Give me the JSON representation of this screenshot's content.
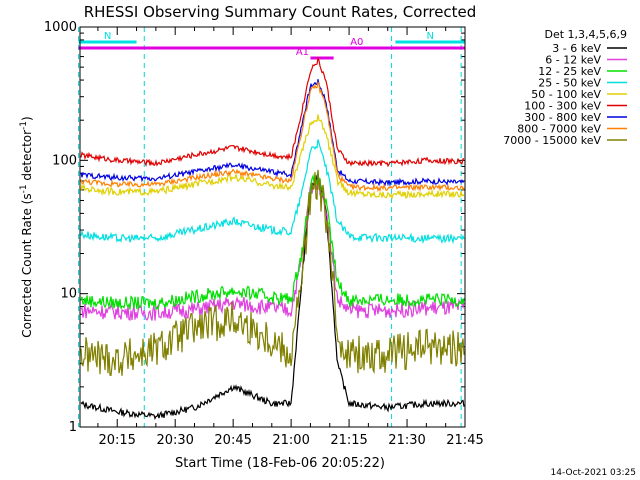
{
  "chart_data": {
    "type": "line",
    "title": "RHESSI Observing Summary Count Rates, Corrected",
    "xlabel": "Start Time (18-Feb-06 20:05:22)",
    "ylabel": "Corrected Count Rate (s⁻¹ detector⁻¹)",
    "ylabel_main": "Corrected Count Rate (s",
    "ylabel_sup1": "-1",
    "ylabel_mid": " detector",
    "ylabel_sup2": "-1",
    "ylabel_end": ")",
    "y_scale": "log",
    "ylim": [
      1,
      1000
    ],
    "xlim": [
      "20:05:22",
      "21:45:00"
    ],
    "x_ticks": [
      "20:15",
      "20:30",
      "20:45",
      "21:00",
      "21:15",
      "21:30",
      "21:45"
    ],
    "y_ticks": [
      "1",
      "10",
      "100",
      "1000"
    ],
    "legend_title": "Det 1,3,4,5,6,9",
    "legend_position": "right",
    "series": [
      {
        "name": "3 - 6 keV",
        "color": "#000000",
        "x": [
          "20:05",
          "20:15",
          "20:25",
          "20:35",
          "20:45",
          "20:55",
          "21:00",
          "21:03",
          "21:05",
          "21:07",
          "21:09",
          "21:12",
          "21:15",
          "21:25",
          "21:35",
          "21:45"
        ],
        "y": [
          1.5,
          1.3,
          1.2,
          1.4,
          2.0,
          1.5,
          1.5,
          15,
          60,
          75,
          45,
          3,
          1.5,
          1.4,
          1.5,
          1.5
        ]
      },
      {
        "name": "6 - 12 keV",
        "color": "#e040e0",
        "x": [
          "20:05",
          "20:15",
          "20:25",
          "20:35",
          "20:45",
          "20:55",
          "21:00",
          "21:03",
          "21:05",
          "21:07",
          "21:09",
          "21:12",
          "21:15",
          "21:25",
          "21:35",
          "21:45"
        ],
        "y": [
          7.5,
          7.3,
          7.2,
          7.6,
          8.5,
          7.8,
          7.5,
          20,
          62,
          70,
          45,
          9,
          7.5,
          7.5,
          7.8,
          7.8
        ]
      },
      {
        "name": "12 - 25 keV",
        "color": "#00e000",
        "x": [
          "20:05",
          "20:15",
          "20:25",
          "20:35",
          "20:45",
          "20:55",
          "21:00",
          "21:03",
          "21:05",
          "21:07",
          "21:09",
          "21:12",
          "21:15",
          "21:25",
          "21:35",
          "21:45"
        ],
        "y": [
          9,
          8.5,
          8.5,
          9.5,
          10.5,
          9.5,
          9,
          22,
          65,
          75,
          48,
          12,
          9,
          9,
          9,
          9
        ]
      },
      {
        "name": "25 - 50 keV",
        "color": "#00e0e0",
        "x": [
          "20:05",
          "20:15",
          "20:25",
          "20:35",
          "20:45",
          "20:55",
          "21:00",
          "21:03",
          "21:05",
          "21:07",
          "21:09",
          "21:12",
          "21:15",
          "21:25",
          "21:35",
          "21:45"
        ],
        "y": [
          28,
          26,
          26,
          30,
          35,
          30,
          29,
          60,
          120,
          135,
          90,
          35,
          27,
          26,
          26,
          26
        ]
      },
      {
        "name": "50 - 100 keV",
        "color": "#e0d000",
        "x": [
          "20:05",
          "20:15",
          "20:25",
          "20:35",
          "20:45",
          "20:55",
          "21:00",
          "21:03",
          "21:05",
          "21:07",
          "21:09",
          "21:12",
          "21:15",
          "21:25",
          "21:35",
          "21:45"
        ],
        "y": [
          62,
          58,
          58,
          66,
          75,
          65,
          62,
          120,
          190,
          210,
          160,
          70,
          57,
          55,
          56,
          56
        ]
      },
      {
        "name": "100 - 300 keV",
        "color": "#e00000",
        "x": [
          "20:05",
          "20:15",
          "20:25",
          "20:35",
          "20:45",
          "20:55",
          "21:00",
          "21:03",
          "21:05",
          "21:07",
          "21:09",
          "21:12",
          "21:15",
          "21:25",
          "21:35",
          "21:45"
        ],
        "y": [
          110,
          100,
          95,
          110,
          125,
          110,
          105,
          250,
          480,
          560,
          400,
          120,
          95,
          95,
          100,
          98
        ]
      },
      {
        "name": "300 - 800 keV",
        "color": "#0000e0",
        "x": [
          "20:05",
          "20:15",
          "20:25",
          "20:35",
          "20:45",
          "20:55",
          "21:00",
          "21:03",
          "21:05",
          "21:07",
          "21:09",
          "21:12",
          "21:15",
          "21:25",
          "21:35",
          "21:45"
        ],
        "y": [
          78,
          74,
          73,
          82,
          92,
          82,
          78,
          200,
          360,
          390,
          280,
          85,
          70,
          68,
          70,
          68
        ]
      },
      {
        "name": "800 - 7000 keV",
        "color": "#ff8000",
        "x": [
          "20:05",
          "20:15",
          "20:25",
          "20:35",
          "20:45",
          "20:55",
          "21:00",
          "21:03",
          "21:05",
          "21:07",
          "21:09",
          "21:12",
          "21:15",
          "21:25",
          "21:35",
          "21:45"
        ],
        "y": [
          70,
          66,
          66,
          74,
          82,
          73,
          70,
          180,
          330,
          370,
          260,
          78,
          63,
          62,
          63,
          62
        ]
      },
      {
        "name": "7000 - 15000 keV",
        "color": "#808000",
        "x": [
          "20:05",
          "20:15",
          "20:25",
          "20:35",
          "20:45",
          "20:55",
          "21:00",
          "21:03",
          "21:05",
          "21:07",
          "21:09",
          "21:12",
          "21:15",
          "21:25",
          "21:35",
          "21:45"
        ],
        "y": [
          3.5,
          3.2,
          3.8,
          5.5,
          6.5,
          4.5,
          3.5,
          15,
          55,
          65,
          40,
          5,
          3.5,
          3.5,
          4,
          3.8
        ]
      }
    ],
    "annotations": [
      {
        "label": "N",
        "color": "#00e0e0",
        "x_start": "20:05",
        "x_end": "20:20"
      },
      {
        "label": "N",
        "color": "#00e0e0",
        "x_start": "21:27",
        "x_end": "21:45"
      },
      {
        "label": "A0",
        "color": "#e000e0",
        "x_start": "20:05",
        "x_end": "21:45"
      },
      {
        "label": "A1",
        "color": "#e000e0",
        "x_start": "21:05",
        "x_end": "21:11"
      }
    ],
    "vertical_markers": [
      "20:05",
      "20:22",
      "21:26",
      "21:44"
    ]
  },
  "footer": {
    "date_stamp": "14-Oct-2021 03:25"
  }
}
